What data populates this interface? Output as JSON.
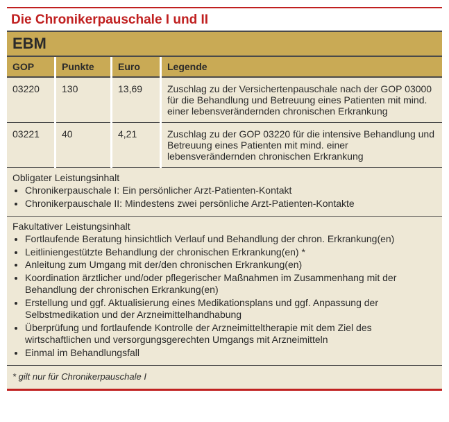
{
  "title": "Die Chronikerpauschale I und II",
  "ebm_label": "EBM",
  "colors": {
    "title_color": "#c02020",
    "header_bg": "#c9aa55",
    "row_bg": "#eee8d6",
    "border_dark": "#4a4a4a",
    "bottom_border": "#c02020"
  },
  "columns": {
    "gop": "GOP",
    "punkte": "Punkte",
    "euro": "Euro",
    "legende": "Legende"
  },
  "rows": [
    {
      "gop": "03220",
      "punkte": "130",
      "euro": "13,69",
      "legende": "Zuschlag zu der Versichertenpauschale nach der GOP 03000 für die Behandlung und Betreuung eines Patienten mit mind. einer lebensverändernden chronischen Erkrankung"
    },
    {
      "gop": "03221",
      "punkte": "40",
      "euro": "4,21",
      "legende": "Zuschlag zu der GOP 03220 für die intensive Behandlung und Betreuung eines Patienten mit mind. einer lebensverändernden chronischen Erkrankung"
    }
  ],
  "obligater": {
    "heading": "Obligater Leistungsinhalt",
    "items": [
      "Chronikerpauschale I: Ein persönlicher Arzt-Patienten-Kontakt",
      "Chronikerpauschale II: Mindestens zwei persönliche Arzt-Patienten-Kontakte"
    ]
  },
  "fakultativer": {
    "heading": "Fakultativer Leistungsinhalt",
    "items": [
      "Fortlaufende Beratung hinsichtlich Verlauf und Behandlung der chron. Erkrankung(en)",
      "Leitliniengestützte Behandlung der chronischen Erkrankung(en) *",
      "Anleitung zum Umgang mit der/den chronischen Erkrankung(en)",
      "Koordination ärztlicher und/oder pflegerischer Maßnahmen im Zusammenhang mit der Behandlung der chronischen Erkrankung(en)",
      "Erstellung und ggf. Aktualisierung eines Medikationsplans und ggf. Anpassung der Selbstmedikation und der Arzneimittelhandhabung",
      "Überprüfung und fortlaufende Kontrolle der Arzneimitteltherapie mit dem Ziel des wirtschaftlichen und versorgungsgerechten Umgangs mit Arzneimitteln",
      "Einmal im Behandlungsfall"
    ]
  },
  "footnote": "* gilt nur für Chronikerpauschale I"
}
